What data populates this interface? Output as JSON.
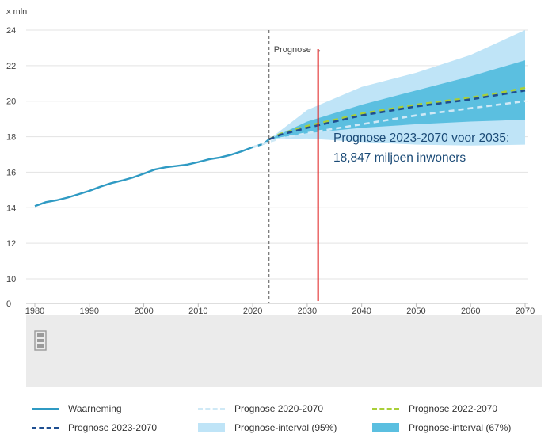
{
  "chart_data": {
    "type": "line",
    "unit_label": "x mln",
    "x_ticks": [
      "1980",
      "1990",
      "2000",
      "2010",
      "2020",
      "2030",
      "2040",
      "2050",
      "2060",
      "2070"
    ],
    "y_ticks": [
      "0",
      "10",
      "12",
      "14",
      "16",
      "18",
      "20",
      "22",
      "24"
    ],
    "ylim": [
      10,
      24
    ],
    "xlim": [
      1980,
      2070
    ],
    "y_axis_break": true,
    "grid": "horizontal",
    "legend_position": "bottom",
    "prognose_marker": {
      "year": 2023,
      "label": "Prognose →"
    },
    "highlight_line": {
      "year": 2032,
      "color": "#e01e1e"
    },
    "annotation": {
      "line1": "Prognose 2023-2070 voor 2035:",
      "line2": "18,847 miljoen inwoners"
    },
    "series": [
      {
        "name": "Waarneming",
        "style": "solid",
        "color": "#2f9ac3",
        "points": [
          [
            1980,
            14.09
          ],
          [
            1982,
            14.31
          ],
          [
            1984,
            14.42
          ],
          [
            1986,
            14.57
          ],
          [
            1988,
            14.76
          ],
          [
            1990,
            14.95
          ],
          [
            1992,
            15.18
          ],
          [
            1994,
            15.38
          ],
          [
            1996,
            15.53
          ],
          [
            1998,
            15.7
          ],
          [
            2000,
            15.92
          ],
          [
            2002,
            16.15
          ],
          [
            2004,
            16.28
          ],
          [
            2006,
            16.35
          ],
          [
            2008,
            16.43
          ],
          [
            2010,
            16.57
          ],
          [
            2012,
            16.73
          ],
          [
            2014,
            16.83
          ],
          [
            2016,
            16.98
          ],
          [
            2018,
            17.18
          ],
          [
            2020,
            17.41
          ],
          [
            2022,
            17.6
          ],
          [
            2023,
            17.85
          ]
        ]
      },
      {
        "name": "Prognose 2020-2070",
        "style": "dashed",
        "color": "#cfe9f6",
        "points": [
          [
            2020,
            17.41
          ],
          [
            2025,
            17.9
          ],
          [
            2030,
            18.2
          ],
          [
            2040,
            18.7
          ],
          [
            2050,
            19.2
          ],
          [
            2060,
            19.6
          ],
          [
            2070,
            20.0
          ]
        ]
      },
      {
        "name": "Prognose 2022-2070",
        "style": "dashed",
        "color": "#a9cf38",
        "points": [
          [
            2023,
            17.85
          ],
          [
            2025,
            18.15
          ],
          [
            2030,
            18.6
          ],
          [
            2035,
            18.95
          ],
          [
            2040,
            19.3
          ],
          [
            2045,
            19.55
          ],
          [
            2050,
            19.8
          ],
          [
            2055,
            20.0
          ],
          [
            2060,
            20.2
          ],
          [
            2065,
            20.45
          ],
          [
            2070,
            20.75
          ]
        ]
      },
      {
        "name": "Prognose 2023-2070",
        "style": "dashed",
        "color": "#1f4f91",
        "points": [
          [
            2023,
            17.85
          ],
          [
            2025,
            18.1
          ],
          [
            2030,
            18.5
          ],
          [
            2035,
            18.85
          ],
          [
            2040,
            19.2
          ],
          [
            2045,
            19.45
          ],
          [
            2050,
            19.7
          ],
          [
            2055,
            19.9
          ],
          [
            2060,
            20.1
          ],
          [
            2065,
            20.35
          ],
          [
            2070,
            20.6
          ]
        ]
      },
      {
        "name": "Prognose-interval (95%)",
        "style": "area",
        "color": "#bfe4f7",
        "upper": [
          [
            2023,
            17.85
          ],
          [
            2030,
            19.5
          ],
          [
            2040,
            20.8
          ],
          [
            2050,
            21.6
          ],
          [
            2060,
            22.6
          ],
          [
            2070,
            24.0
          ]
        ],
        "lower": [
          [
            2023,
            17.85
          ],
          [
            2030,
            17.9
          ],
          [
            2040,
            17.7
          ],
          [
            2050,
            17.55
          ],
          [
            2060,
            17.5
          ],
          [
            2070,
            17.55
          ]
        ]
      },
      {
        "name": "Prognose-interval (67%)",
        "style": "area",
        "color": "#5bbfe0",
        "upper": [
          [
            2023,
            17.85
          ],
          [
            2030,
            18.85
          ],
          [
            2040,
            19.8
          ],
          [
            2050,
            20.6
          ],
          [
            2060,
            21.4
          ],
          [
            2070,
            22.3
          ]
        ],
        "lower": [
          [
            2023,
            17.85
          ],
          [
            2030,
            18.2
          ],
          [
            2040,
            18.5
          ],
          [
            2050,
            18.7
          ],
          [
            2060,
            18.85
          ],
          [
            2070,
            18.95
          ]
        ]
      }
    ]
  },
  "legend": {
    "items": [
      {
        "label": "Waarneming",
        "swatch": "solid"
      },
      {
        "label": "Prognose 2020-2070",
        "swatch": "dash-light"
      },
      {
        "label": "Prognose 2022-2070",
        "swatch": "dash-green"
      },
      {
        "label": "Prognose 2023-2070",
        "swatch": "dash-navy"
      },
      {
        "label": "Prognose-interval (95%)",
        "swatch": "area95"
      },
      {
        "label": "Prognose-interval (67%)",
        "swatch": "area67"
      }
    ]
  }
}
